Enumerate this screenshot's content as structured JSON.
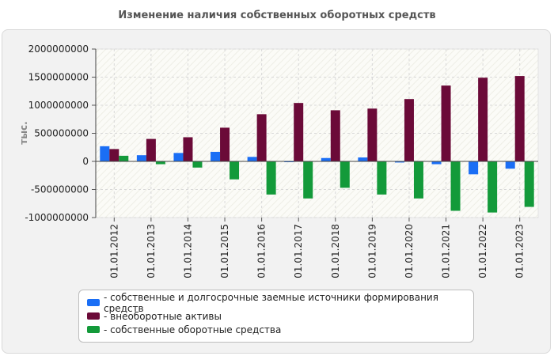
{
  "chart_data": {
    "type": "bar",
    "title": "Изменение наличия собственных оборотных средств",
    "ylabel": "тыс.",
    "ylim": [
      -1000000000,
      2000000000
    ],
    "yticks": [
      2000000000,
      1500000000,
      1000000000,
      500000000,
      0,
      -500000000,
      -1000000000
    ],
    "ytick_labels": [
      "2000000000",
      "1500000000",
      "1000000000",
      "500000000",
      "0",
      "-500000000",
      "-1000000000"
    ],
    "grid": true,
    "legend_position": "bottom",
    "categories": [
      "01.01.2012",
      "01.01.2013",
      "01.01.2014",
      "01.01.2015",
      "01.01.2016",
      "01.01.2017",
      "01.01.2018",
      "01.01.2019",
      "01.01.2020",
      "01.01.2021",
      "01.01.2022",
      "01.01.2023"
    ],
    "series": [
      {
        "name": "- собственные и долгосрочные заемные источники формирования средств",
        "color": "#1a6ef5",
        "values": [
          270000000,
          110000000,
          150000000,
          170000000,
          80000000,
          -10000000,
          60000000,
          70000000,
          -20000000,
          -50000000,
          -230000000,
          -130000000
        ]
      },
      {
        "name": "- внеоборотные активы",
        "color": "#6b0a38",
        "values": [
          220000000,
          400000000,
          430000000,
          600000000,
          840000000,
          1040000000,
          910000000,
          940000000,
          1110000000,
          1350000000,
          1490000000,
          1520000000
        ]
      },
      {
        "name": "- собственные оборотные средства",
        "color": "#139a3a",
        "values": [
          100000000,
          -50000000,
          -110000000,
          -320000000,
          -590000000,
          -660000000,
          -470000000,
          -590000000,
          -660000000,
          -880000000,
          -910000000,
          -810000000
        ]
      }
    ]
  }
}
